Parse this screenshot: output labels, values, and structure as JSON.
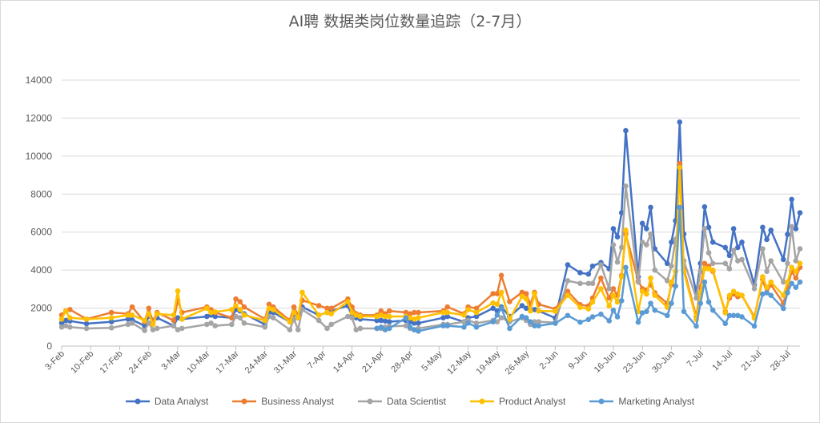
{
  "chart_data": {
    "type": "line",
    "title": "AI聘 数据类岗位数量追踪（2-7月）",
    "xlabel": "",
    "ylabel": "",
    "ylim": [
      0,
      14000
    ],
    "yticks": [
      "0",
      "2000",
      "4000",
      "6000",
      "8000",
      "10000",
      "12000",
      "14000"
    ],
    "x_range": [
      "3-Feb",
      "31-Jul"
    ],
    "xticks": [
      "3-Feb",
      "10-Feb",
      "17-Feb",
      "24-Feb",
      "3-Mar",
      "10-Mar",
      "17-Mar",
      "24-Mar",
      "31-Mar",
      "7-Apr",
      "14-Apr",
      "21-Apr",
      "28-Apr",
      "5-May",
      "12-May",
      "19-May",
      "26-May",
      "2-Jun",
      "9-Jun",
      "16-Jun",
      "23-Jun",
      "30-Jun",
      "7-Jul",
      "14-Jul",
      "21-Jul",
      "28-Jul"
    ],
    "grid": true,
    "legend_position": "bottom",
    "x": [
      "3-Feb",
      "4-Feb",
      "5-Feb",
      "9-Feb",
      "15-Feb",
      "19-Feb",
      "20-Feb",
      "23-Feb",
      "24-Feb",
      "25-Feb",
      "26-Feb",
      "2-Mar",
      "3-Mar",
      "4-Mar",
      "10-Mar",
      "11-Mar",
      "12-Mar",
      "16-Mar",
      "17-Mar",
      "18-Mar",
      "19-Mar",
      "24-Mar",
      "25-Mar",
      "26-Mar",
      "30-Mar",
      "31-Mar",
      "1-Apr",
      "2-Apr",
      "6-Apr",
      "8-Apr",
      "9-Apr",
      "13-Apr",
      "14-Apr",
      "15-Apr",
      "16-Apr",
      "20-Apr",
      "21-Apr",
      "22-Apr",
      "23-Apr",
      "27-Apr",
      "28-Apr",
      "29-Apr",
      "30-Apr",
      "6-May",
      "7-May",
      "11-May",
      "12-May",
      "14-May",
      "18-May",
      "19-May",
      "20-May",
      "22-May",
      "25-May",
      "26-May",
      "27-May",
      "28-May",
      "29-May",
      "2-Jun",
      "5-Jun",
      "8-Jun",
      "10-Jun",
      "11-Jun",
      "13-Jun",
      "15-Jun",
      "16-Jun",
      "17-Jun",
      "18-Jun",
      "19-Jun",
      "22-Jun",
      "23-Jun",
      "24-Jun",
      "25-Jun",
      "26-Jun",
      "29-Jun",
      "30-Jun",
      "1-Jul",
      "2-Jul",
      "3-Jul",
      "6-Jul",
      "7-Jul",
      "8-Jul",
      "9-Jul",
      "10-Jul",
      "13-Jul",
      "14-Jul",
      "15-Jul",
      "16-Jul",
      "17-Jul",
      "20-Jul",
      "22-Jul",
      "23-Jul",
      "24-Jul",
      "27-Jul",
      "28-Jul",
      "29-Jul",
      "30-Jul",
      "31-Jul"
    ],
    "series": [
      {
        "name": "Data Analyst",
        "color": "#4472C4",
        "values": [
          1210,
          1350,
          1320,
          1180,
          1280,
          1420,
          1380,
          1070,
          1560,
          1350,
          1490,
          1070,
          1490,
          1420,
          1560,
          1630,
          1560,
          1490,
          1920,
          1850,
          1700,
          1140,
          1770,
          1770,
          1280,
          1700,
          1490,
          2060,
          1630,
          1770,
          1850,
          2130,
          1560,
          1490,
          1420,
          1350,
          1350,
          1320,
          1280,
          1350,
          1280,
          1210,
          1210,
          1490,
          1560,
          1280,
          1490,
          1560,
          1990,
          1850,
          2060,
          1560,
          2130,
          1990,
          1920,
          1920,
          1850,
          1480,
          4280,
          3860,
          3790,
          4210,
          4400,
          4070,
          6180,
          5750,
          7020,
          11340,
          3650,
          6460,
          6180,
          7300,
          5120,
          4350,
          5470,
          6600,
          11790,
          5900,
          2810,
          4350,
          7330,
          6250,
          5470,
          5190,
          4770,
          6180,
          5190,
          5470,
          3230,
          6250,
          5610,
          6100,
          4560,
          5880,
          7720,
          6180,
          7020
        ]
      },
      {
        "name": "Business Analyst",
        "color": "#ED7D31",
        "values": [
          1630,
          1850,
          1920,
          1420,
          1770,
          1700,
          2060,
          1280,
          1990,
          1280,
          1770,
          1350,
          2410,
          1770,
          2060,
          1920,
          1770,
          1490,
          2480,
          2340,
          2060,
          1420,
          2200,
          2060,
          1350,
          2060,
          1630,
          2410,
          2130,
          1990,
          1990,
          2480,
          2060,
          1700,
          1630,
          1630,
          1850,
          1700,
          1850,
          1770,
          1700,
          1770,
          1770,
          1850,
          2060,
          1700,
          2060,
          1990,
          2760,
          2760,
          3720,
          2340,
          2830,
          2760,
          2200,
          2830,
          2200,
          1950,
          2880,
          2180,
          2110,
          2530,
          3580,
          2530,
          3020,
          2670,
          3720,
          5900,
          3440,
          3020,
          2950,
          3230,
          2810,
          2250,
          3230,
          3930,
          9610,
          4070,
          1540,
          3090,
          4350,
          4210,
          3930,
          1820,
          2530,
          2740,
          2600,
          2670,
          1540,
          3510,
          2810,
          3230,
          2250,
          3090,
          3930,
          3580,
          4140
        ]
      },
      {
        "name": "Data Scientist",
        "color": "#A5A5A5",
        "values": [
          1000,
          1070,
          1000,
          930,
          960,
          1140,
          1210,
          820,
          1210,
          860,
          930,
          1070,
          860,
          930,
          1140,
          1210,
          1070,
          1140,
          1560,
          1490,
          1210,
          1000,
          1560,
          1490,
          860,
          1420,
          860,
          1920,
          1350,
          930,
          1140,
          1560,
          1490,
          860,
          930,
          930,
          930,
          1000,
          1040,
          1070,
          930,
          860,
          930,
          1140,
          1140,
          1280,
          1350,
          1210,
          1350,
          1280,
          1490,
          1280,
          1490,
          1350,
          1140,
          1280,
          1280,
          1240,
          3440,
          3300,
          3300,
          3300,
          4280,
          3020,
          5330,
          4420,
          5190,
          8420,
          3370,
          5470,
          5330,
          5900,
          4000,
          3440,
          4210,
          5610,
          6460,
          4490,
          2530,
          3930,
          6180,
          4910,
          4350,
          4350,
          4070,
          5050,
          4490,
          4560,
          3020,
          5120,
          3930,
          4490,
          3370,
          4350,
          6290,
          4490,
          5120
        ]
      },
      {
        "name": "Product Analyst",
        "color": "#FFC000",
        "values": [
          1420,
          1850,
          1490,
          1420,
          1490,
          1630,
          1630,
          1350,
          1700,
          1140,
          1700,
          1630,
          2900,
          1420,
          1990,
          1770,
          1800,
          1920,
          2130,
          1920,
          1630,
          1350,
          1990,
          1920,
          1280,
          1770,
          1490,
          2830,
          1630,
          1770,
          1700,
          2340,
          1770,
          1630,
          1560,
          1560,
          1630,
          1560,
          1560,
          1560,
          1490,
          1420,
          1490,
          1770,
          1770,
          1630,
          1920,
          1770,
          2270,
          2200,
          2830,
          1420,
          2620,
          2480,
          1850,
          2760,
          1850,
          1830,
          2670,
          2040,
          1960,
          2320,
          3020,
          2110,
          2670,
          2320,
          3650,
          6100,
          1820,
          2880,
          2740,
          3580,
          2670,
          2040,
          3370,
          3930,
          9400,
          3930,
          1400,
          2810,
          4070,
          4070,
          4000,
          1750,
          2670,
          2880,
          2740,
          2670,
          1470,
          3650,
          3090,
          3370,
          2670,
          3370,
          4140,
          3930,
          4350
        ]
      },
      {
        "name": "Marketing Analyst",
        "color": "#5B9BD5",
        "values": [
          null,
          null,
          null,
          null,
          null,
          null,
          null,
          null,
          null,
          null,
          null,
          null,
          null,
          null,
          null,
          null,
          null,
          null,
          null,
          null,
          null,
          null,
          null,
          null,
          null,
          null,
          null,
          null,
          null,
          null,
          null,
          null,
          null,
          null,
          null,
          930,
          1000,
          860,
          930,
          1490,
          1000,
          860,
          790,
          1070,
          1070,
          1000,
          1210,
          1000,
          1280,
          1630,
          1990,
          930,
          1560,
          1490,
          1280,
          1070,
          1070,
          1200,
          1610,
          1260,
          1400,
          1540,
          1680,
          1330,
          1890,
          1540,
          2390,
          4140,
          1260,
          1750,
          1820,
          2250,
          1890,
          1610,
          2250,
          3160,
          7300,
          1820,
          1050,
          2250,
          3370,
          2320,
          1890,
          1190,
          1610,
          1610,
          1610,
          1540,
          1050,
          2740,
          2810,
          2670,
          1980,
          2810,
          3300,
          3090,
          3370
        ]
      }
    ]
  }
}
